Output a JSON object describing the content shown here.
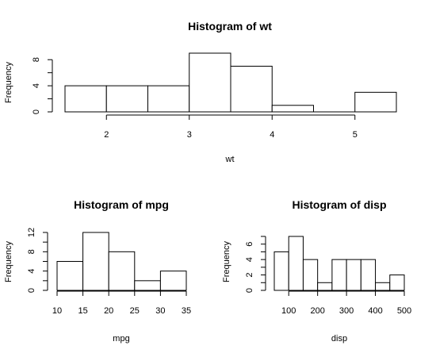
{
  "chart_data": [
    {
      "type": "bar",
      "title": "Histogram of wt",
      "xlabel": "wt",
      "ylabel": "Frequency",
      "bins": [
        [
          1.5,
          2.0
        ],
        [
          2.0,
          2.5
        ],
        [
          2.5,
          3.0
        ],
        [
          3.0,
          3.5
        ],
        [
          3.5,
          4.0
        ],
        [
          4.0,
          4.5
        ],
        [
          4.5,
          5.0
        ],
        [
          5.0,
          5.5
        ]
      ],
      "values": [
        4,
        4,
        4,
        9,
        7,
        1,
        0,
        3
      ],
      "xticks": [
        2,
        3,
        4,
        5
      ],
      "xtick_labels": [
        "2",
        "3",
        "4",
        "5"
      ],
      "yticks": [
        0,
        2,
        4,
        6,
        8
      ],
      "ytick_labels": [
        "0",
        "",
        "4",
        "",
        "8"
      ],
      "xlim": [
        1.5,
        5.5
      ],
      "ylim": [
        0,
        9
      ]
    },
    {
      "type": "bar",
      "title": "Histogram of mpg",
      "xlabel": "mpg",
      "ylabel": "Frequency",
      "bins": [
        [
          10,
          15
        ],
        [
          15,
          20
        ],
        [
          20,
          25
        ],
        [
          25,
          30
        ],
        [
          30,
          35
        ]
      ],
      "values": [
        6,
        12,
        8,
        2,
        4
      ],
      "xticks": [
        10,
        15,
        20,
        25,
        30,
        35
      ],
      "xtick_labels": [
        "10",
        "15",
        "20",
        "25",
        "30",
        "35"
      ],
      "yticks": [
        0,
        2,
        4,
        6,
        8,
        10,
        12
      ],
      "ytick_labels": [
        "0",
        "",
        "4",
        "",
        "8",
        "",
        "12"
      ],
      "xlim": [
        10,
        35
      ],
      "ylim": [
        0,
        12
      ]
    },
    {
      "type": "bar",
      "title": "Histogram of disp",
      "xlabel": "disp",
      "ylabel": "Frequency",
      "bins": [
        [
          50,
          100
        ],
        [
          100,
          150
        ],
        [
          150,
          200
        ],
        [
          200,
          250
        ],
        [
          250,
          300
        ],
        [
          300,
          350
        ],
        [
          350,
          400
        ],
        [
          400,
          450
        ],
        [
          450,
          500
        ]
      ],
      "values": [
        5,
        7,
        4,
        1,
        4,
        4,
        4,
        1,
        2
      ],
      "xticks": [
        100,
        200,
        300,
        400,
        500
      ],
      "xtick_labels": [
        "100",
        "200",
        "300",
        "400",
        "500"
      ],
      "yticks": [
        0,
        1,
        2,
        3,
        4,
        5,
        6,
        7
      ],
      "ytick_labels": [
        "0",
        "",
        "2",
        "",
        "4",
        "",
        "6",
        ""
      ],
      "xlim": [
        50,
        500
      ],
      "ylim": [
        0,
        7
      ]
    }
  ]
}
